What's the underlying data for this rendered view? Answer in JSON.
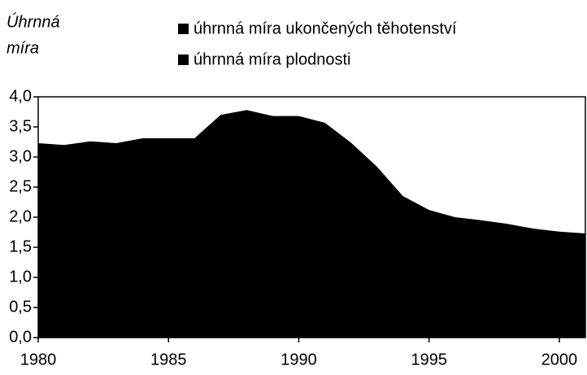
{
  "chart_data": {
    "type": "area",
    "y_label": [
      "Úhrnná",
      "míra"
    ],
    "x": [
      1980,
      1981,
      1982,
      1983,
      1984,
      1985,
      1986,
      1987,
      1988,
      1989,
      1990,
      1991,
      1992,
      1993,
      1994,
      1995,
      1996,
      1997,
      1998,
      1999,
      2000,
      2001
    ],
    "series": [
      {
        "name": "úhrnná míra ukončených těhotenství",
        "color": "#000000",
        "values": [
          3.23,
          3.2,
          3.26,
          3.23,
          3.31,
          3.31,
          3.31,
          3.7,
          3.78,
          3.68,
          3.68,
          3.57,
          3.24,
          2.84,
          2.35,
          2.12,
          2.0,
          1.95,
          1.89,
          1.81,
          1.76,
          1.73
        ]
      },
      {
        "name": "úhrnná míra plodnosti",
        "color": "#000000"
      }
    ],
    "xlim": [
      1980,
      2001
    ],
    "xticks": [
      1980,
      1985,
      1990,
      1995,
      2000
    ],
    "ylim": [
      0,
      4
    ],
    "yticks": [
      {
        "value": 0,
        "label": "0,0"
      },
      {
        "value": 0.5,
        "label": "0,5"
      },
      {
        "value": 1,
        "label": "1,0"
      },
      {
        "value": 1.5,
        "label": "1,5"
      },
      {
        "value": 2,
        "label": "2,0"
      },
      {
        "value": 2.5,
        "label": "2,5"
      },
      {
        "value": 3,
        "label": "3,0"
      },
      {
        "value": 3.5,
        "label": "3,5"
      },
      {
        "value": 4,
        "label": "4,0"
      }
    ],
    "grid": false
  }
}
